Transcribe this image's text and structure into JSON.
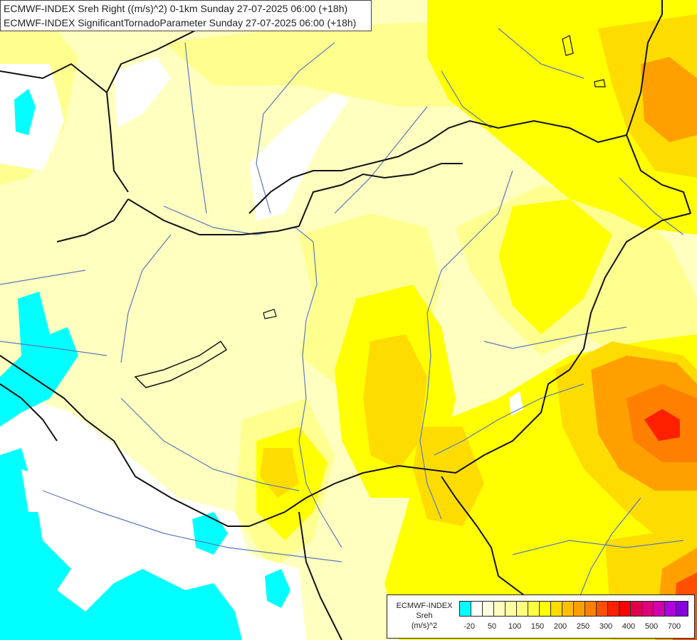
{
  "header": {
    "line1": "ECMWF-INDEX Sreh Right ((m/s)^2) 0-1km Sunday 27-07-2025 06:00 (+18h)",
    "line2": "ECMWF-INDEX SignificantTornadoParameter Sunday 27-07-2025 06:00 (+18h)"
  },
  "legend": {
    "line1": "ECMWF-INDEX",
    "line2": "Sreh",
    "line3": "(m/s)^2",
    "swatches": [
      "#00ffff",
      "#ffffff",
      "#ffffe0",
      "#ffffc0",
      "#ffffa0",
      "#ffff80",
      "#ffff40",
      "#ffff00",
      "#ffdc00",
      "#ffbf00",
      "#ffa000",
      "#ff8000",
      "#ff5000",
      "#ff2000",
      "#ff0000",
      "#e0004a",
      "#e0007a",
      "#d000b0",
      "#b000e0",
      "#8800e0",
      "#5000c0",
      "#2000a0"
    ],
    "ticks": [
      "-20",
      "50",
      "100",
      "150",
      "200",
      "250",
      "300",
      "400",
      "500",
      "700"
    ]
  },
  "colors": {
    "cyan": "#00ffff",
    "white": "#ffffff",
    "pale": "#ffffc0",
    "light_yellow": "#ffff90",
    "yellow": "#ffff00",
    "gold": "#ffdc00",
    "orange": "#ffa000",
    "dark_orange": "#ff8000",
    "red": "#ff2000",
    "border": "#111111",
    "river": "#5a79b8"
  }
}
